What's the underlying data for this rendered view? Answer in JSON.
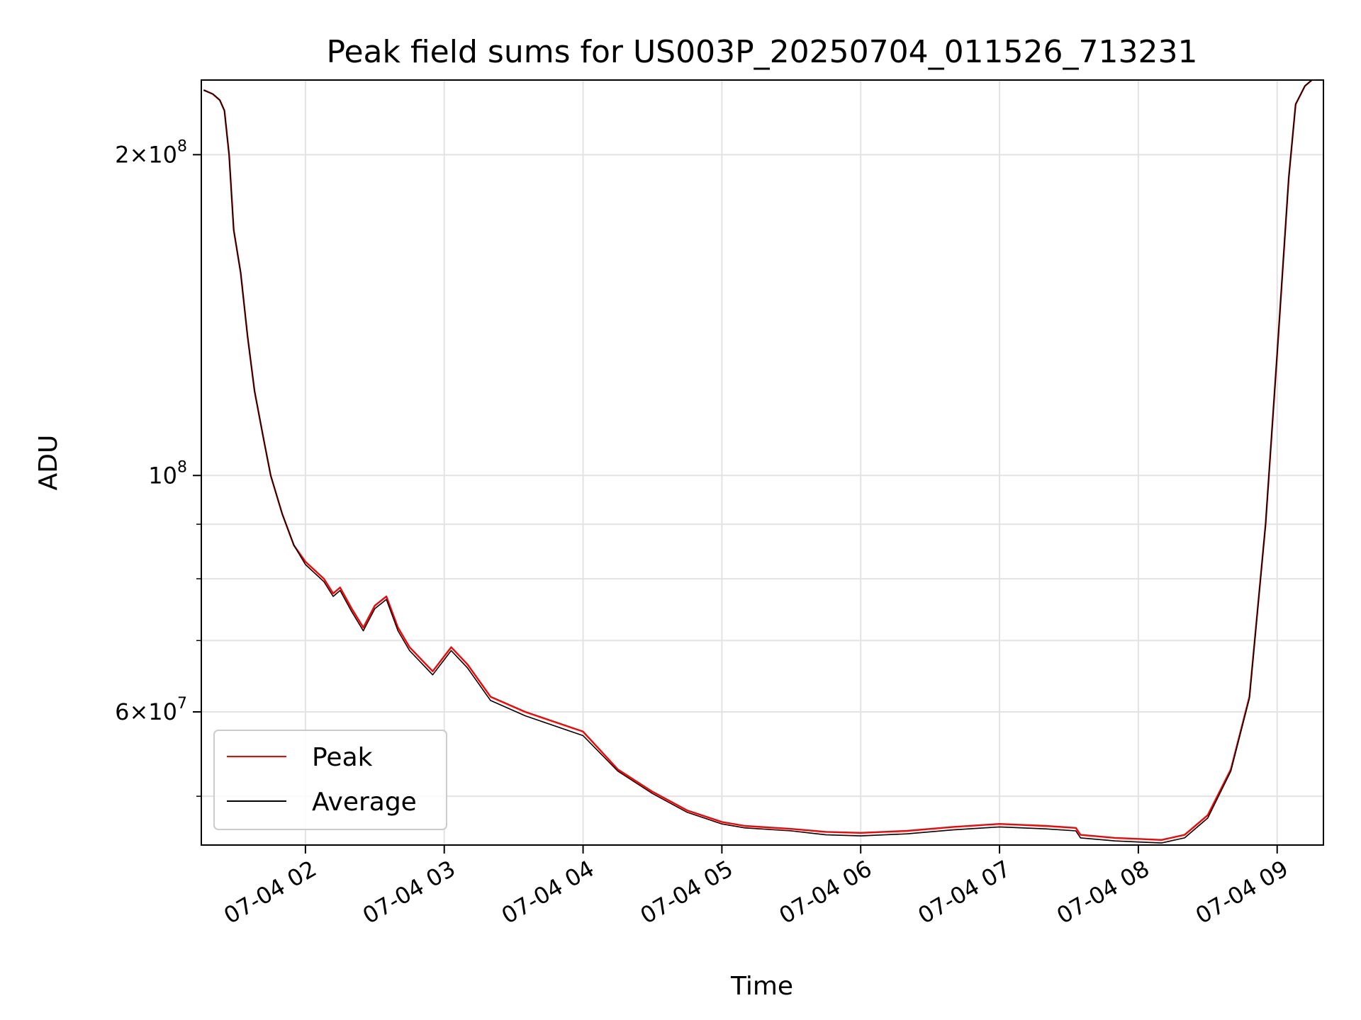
{
  "chart_data": {
    "type": "line",
    "title": "Peak field sums for US003P_20250704_011526_713231",
    "xlabel": "Time",
    "ylabel": "ADU",
    "yscale": "log",
    "grid": true,
    "legend": {
      "placement": "lower-left",
      "entries": [
        "Peak",
        "Average"
      ]
    },
    "xlim": [
      "2025-07-04 01:15",
      "2025-07-04 09:20"
    ],
    "ylim": [
      45000000,
      235000000
    ],
    "x_ticks": [
      {
        "value": "2025-07-04 02:00",
        "label": "07-04 02"
      },
      {
        "value": "2025-07-04 03:00",
        "label": "07-04 03"
      },
      {
        "value": "2025-07-04 04:00",
        "label": "07-04 04"
      },
      {
        "value": "2025-07-04 05:00",
        "label": "07-04 05"
      },
      {
        "value": "2025-07-04 06:00",
        "label": "07-04 06"
      },
      {
        "value": "2025-07-04 07:00",
        "label": "07-04 07"
      },
      {
        "value": "2025-07-04 08:00",
        "label": "07-04 08"
      },
      {
        "value": "2025-07-04 09:00",
        "label": "07-04 09"
      }
    ],
    "y_major_ticks": [
      {
        "value": 60000000,
        "mantissa": "6",
        "exponent": "7"
      },
      {
        "value": 100000000,
        "mantissa": "",
        "exponent": "8"
      },
      {
        "value": 200000000,
        "mantissa": "2",
        "exponent": "8"
      }
    ],
    "y_minor_ticks": [
      50000000,
      70000000,
      80000000,
      90000000
    ],
    "series": [
      {
        "name": "Peak",
        "color": "#ff0000",
        "x": [
          "2025-07-04 01:16",
          "2025-07-04 01:20",
          "2025-07-04 01:23",
          "2025-07-04 01:25",
          "2025-07-04 01:27",
          "2025-07-04 01:29",
          "2025-07-04 01:32",
          "2025-07-04 01:35",
          "2025-07-04 01:38",
          "2025-07-04 01:42",
          "2025-07-04 01:45",
          "2025-07-04 01:50",
          "2025-07-04 01:55",
          "2025-07-04 02:00",
          "2025-07-04 02:08",
          "2025-07-04 02:12",
          "2025-07-04 02:15",
          "2025-07-04 02:20",
          "2025-07-04 02:25",
          "2025-07-04 02:30",
          "2025-07-04 02:35",
          "2025-07-04 02:40",
          "2025-07-04 02:45",
          "2025-07-04 02:55",
          "2025-07-04 03:03",
          "2025-07-04 03:10",
          "2025-07-04 03:20",
          "2025-07-04 03:35",
          "2025-07-04 04:00",
          "2025-07-04 04:15",
          "2025-07-04 04:30",
          "2025-07-04 04:45",
          "2025-07-04 05:00",
          "2025-07-04 05:10",
          "2025-07-04 05:30",
          "2025-07-04 05:45",
          "2025-07-04 06:00",
          "2025-07-04 06:20",
          "2025-07-04 06:40",
          "2025-07-04 07:00",
          "2025-07-04 07:20",
          "2025-07-04 07:33",
          "2025-07-04 07:35",
          "2025-07-04 07:50",
          "2025-07-04 08:00",
          "2025-07-04 08:10",
          "2025-07-04 08:20",
          "2025-07-04 08:30",
          "2025-07-04 08:40",
          "2025-07-04 08:48",
          "2025-07-04 08:55",
          "2025-07-04 09:00",
          "2025-07-04 09:05",
          "2025-07-04 09:08",
          "2025-07-04 09:12",
          "2025-07-04 09:15"
        ],
        "y": [
          230000000,
          228000000,
          225000000,
          220000000,
          200000000,
          170000000,
          155000000,
          135000000,
          120000000,
          108000000,
          100000000,
          92000000,
          86000000,
          83000000,
          80000000,
          77500000,
          78500000,
          75000000,
          72000000,
          75500000,
          77000000,
          72000000,
          69000000,
          65500000,
          69000000,
          66500000,
          62000000,
          60000000,
          57500000,
          53000000,
          50500000,
          48500000,
          47300000,
          46900000,
          46600000,
          46300000,
          46200000,
          46400000,
          46800000,
          47100000,
          46900000,
          46700000,
          46000000,
          45700000,
          45600000,
          45500000,
          46000000,
          48000000,
          53000000,
          62000000,
          90000000,
          130000000,
          190000000,
          223000000,
          232000000,
          235000000
        ]
      },
      {
        "name": "Average",
        "color": "#000000",
        "x": [
          "2025-07-04 01:16",
          "2025-07-04 01:20",
          "2025-07-04 01:23",
          "2025-07-04 01:25",
          "2025-07-04 01:27",
          "2025-07-04 01:29",
          "2025-07-04 01:32",
          "2025-07-04 01:35",
          "2025-07-04 01:38",
          "2025-07-04 01:42",
          "2025-07-04 01:45",
          "2025-07-04 01:50",
          "2025-07-04 01:55",
          "2025-07-04 02:00",
          "2025-07-04 02:08",
          "2025-07-04 02:12",
          "2025-07-04 02:15",
          "2025-07-04 02:20",
          "2025-07-04 02:25",
          "2025-07-04 02:30",
          "2025-07-04 02:35",
          "2025-07-04 02:40",
          "2025-07-04 02:45",
          "2025-07-04 02:55",
          "2025-07-04 03:03",
          "2025-07-04 03:10",
          "2025-07-04 03:20",
          "2025-07-04 03:35",
          "2025-07-04 04:00",
          "2025-07-04 04:15",
          "2025-07-04 04:30",
          "2025-07-04 04:45",
          "2025-07-04 05:00",
          "2025-07-04 05:10",
          "2025-07-04 05:30",
          "2025-07-04 05:45",
          "2025-07-04 06:00",
          "2025-07-04 06:20",
          "2025-07-04 06:40",
          "2025-07-04 07:00",
          "2025-07-04 07:20",
          "2025-07-04 07:33",
          "2025-07-04 07:35",
          "2025-07-04 07:50",
          "2025-07-04 08:00",
          "2025-07-04 08:10",
          "2025-07-04 08:20",
          "2025-07-04 08:30",
          "2025-07-04 08:40",
          "2025-07-04 08:48",
          "2025-07-04 08:55",
          "2025-07-04 09:00",
          "2025-07-04 09:05",
          "2025-07-04 09:08",
          "2025-07-04 09:12",
          "2025-07-04 09:15"
        ],
        "y": [
          230000000,
          228000000,
          225000000,
          220000000,
          200000000,
          170000000,
          155000000,
          135000000,
          120000000,
          108000000,
          100000000,
          92000000,
          86000000,
          82500000,
          79500000,
          77000000,
          78000000,
          74500000,
          71500000,
          75000000,
          76500000,
          71500000,
          68500000,
          65000000,
          68500000,
          66000000,
          61500000,
          59500000,
          57000000,
          52800000,
          50300000,
          48300000,
          47100000,
          46700000,
          46400000,
          46000000,
          45900000,
          46100000,
          46500000,
          46800000,
          46600000,
          46400000,
          45700000,
          45400000,
          45300000,
          45200000,
          45700000,
          47700000,
          52800000,
          61800000,
          90000000,
          130000000,
          190000000,
          223000000,
          232000000,
          235000000
        ]
      }
    ]
  }
}
